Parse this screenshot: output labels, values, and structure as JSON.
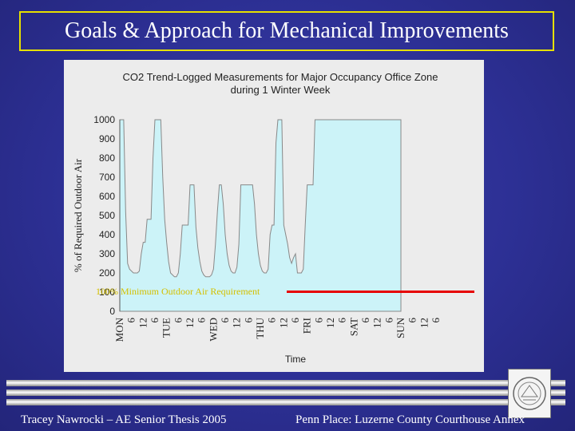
{
  "slide": {
    "title": "Goals & Approach for Mechanical Improvements",
    "overlay_label": "100% Minimum Outdoor Air Requirement",
    "footer_left": "Tracey Nawrocki – AE Senior Thesis 2005",
    "footer_right": "Penn Place: Luzerne County Courthouse Annex",
    "colors": {
      "title_border": "#e6e000",
      "overlay_label": "#d4c000",
      "requirement_line": "#e60000",
      "area_fill": "#ccf3f8",
      "area_stroke": "#888888"
    }
  },
  "chart_data": {
    "type": "area",
    "title": "CO2 Trend-Logged Measurements for Major Occupancy Office Zone",
    "subtitle": "during 1 Winter Week",
    "xlabel": "Time",
    "ylabel": "% of Required Outdoor Air",
    "ylim": [
      0,
      1000
    ],
    "yticks": [
      0,
      100,
      200,
      300,
      400,
      500,
      600,
      700,
      800,
      900,
      1000
    ],
    "xlim": [
      0,
      180
    ],
    "grid": false,
    "xticks": [
      {
        "x": 0,
        "label": "MON"
      },
      {
        "x": 6,
        "label": "6"
      },
      {
        "x": 12,
        "label": "12"
      },
      {
        "x": 18,
        "label": "6"
      },
      {
        "x": 24,
        "label": "TUE"
      },
      {
        "x": 30,
        "label": "6"
      },
      {
        "x": 36,
        "label": "12"
      },
      {
        "x": 42,
        "label": "6"
      },
      {
        "x": 48,
        "label": "WED"
      },
      {
        "x": 54,
        "label": "6"
      },
      {
        "x": 60,
        "label": "12"
      },
      {
        "x": 66,
        "label": "6"
      },
      {
        "x": 72,
        "label": "THU"
      },
      {
        "x": 78,
        "label": "6"
      },
      {
        "x": 84,
        "label": "12"
      },
      {
        "x": 90,
        "label": "6"
      },
      {
        "x": 96,
        "label": "FRI"
      },
      {
        "x": 102,
        "label": "6"
      },
      {
        "x": 108,
        "label": "12"
      },
      {
        "x": 114,
        "label": "6"
      },
      {
        "x": 120,
        "label": "SAT"
      },
      {
        "x": 126,
        "label": "6"
      },
      {
        "x": 132,
        "label": "12"
      },
      {
        "x": 138,
        "label": "6"
      },
      {
        "x": 144,
        "label": "SUN"
      },
      {
        "x": 150,
        "label": "6"
      },
      {
        "x": 156,
        "label": "12"
      },
      {
        "x": 162,
        "label": "6"
      }
    ],
    "series": [
      {
        "x": [
          0,
          1,
          2,
          3,
          4,
          5,
          6,
          7,
          8,
          9,
          10,
          11,
          12,
          13,
          14,
          15,
          16,
          17,
          18,
          19,
          20,
          21,
          22,
          23,
          24,
          25,
          26,
          27,
          28,
          29,
          30,
          31,
          32,
          33,
          34,
          35,
          36,
          37,
          38,
          39,
          40,
          41,
          42,
          43,
          44,
          45,
          46,
          47,
          48,
          49,
          50,
          51,
          52,
          53,
          54,
          55,
          56,
          57,
          58,
          59,
          60,
          61,
          62,
          63,
          64,
          65,
          66,
          67,
          68,
          69,
          70,
          71,
          72,
          73,
          74,
          75,
          76,
          77,
          78,
          79,
          80,
          81,
          82,
          83,
          84,
          85,
          86,
          87,
          88,
          89,
          90,
          91,
          92,
          93,
          94,
          95,
          96,
          97,
          98,
          99,
          100,
          101,
          102,
          103,
          104,
          105,
          106,
          107,
          108,
          109,
          110,
          111,
          112,
          113,
          114,
          115,
          116,
          117,
          118,
          119,
          120,
          121,
          122,
          123,
          124,
          125,
          126,
          127,
          128,
          129,
          130,
          131,
          132,
          133,
          134,
          135,
          136,
          137,
          138,
          139,
          140,
          141,
          142,
          143,
          144
        ],
        "values": [
          1000,
          1000,
          1000,
          520,
          250,
          220,
          210,
          200,
          200,
          200,
          210,
          300,
          360,
          360,
          480,
          480,
          480,
          800,
          1000,
          1000,
          1000,
          1000,
          700,
          480,
          360,
          260,
          200,
          190,
          180,
          180,
          200,
          300,
          450,
          450,
          450,
          450,
          660,
          660,
          660,
          440,
          330,
          260,
          210,
          190,
          180,
          180,
          180,
          190,
          220,
          350,
          520,
          660,
          660,
          560,
          400,
          300,
          240,
          210,
          200,
          200,
          230,
          350,
          660,
          660,
          660,
          660,
          660,
          660,
          660,
          560,
          400,
          300,
          240,
          210,
          200,
          200,
          220,
          400,
          450,
          450,
          880,
          1000,
          1000,
          1000,
          450,
          400,
          350,
          280,
          250,
          280,
          300,
          200,
          200,
          200,
          220,
          450,
          660,
          660,
          660,
          660,
          1000,
          1000,
          1000,
          1000,
          1000,
          1000,
          1000,
          1000,
          1000,
          1000,
          1000,
          1000,
          1000,
          1000,
          1000,
          1000,
          1000,
          1000,
          1000,
          1000,
          1000,
          1000,
          1000,
          1000,
          1000,
          1000,
          1000,
          1000,
          1000,
          1000,
          1000,
          1000,
          1000,
          1000,
          1000,
          1000,
          1000,
          1000,
          1000,
          1000,
          1000,
          1000,
          1000,
          1000,
          1000
        ]
      }
    ]
  }
}
